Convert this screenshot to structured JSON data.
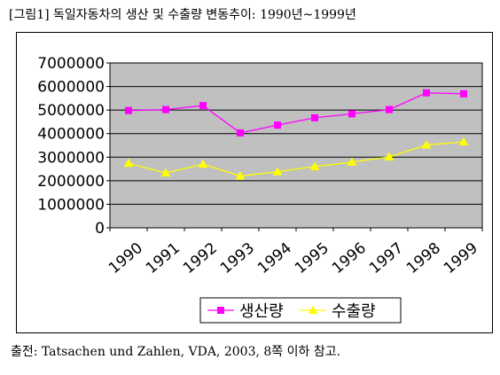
{
  "figure_title": "[그림1] 독일자동차의 생산 및 수출량 변동추이: 1990년~1999년",
  "caption": "출전: Tatsachen und Zahlen, VDA, 2003, 8쪽 이하 참고.",
  "chart_data": {
    "type": "line",
    "title": "",
    "xlabel": "",
    "ylabel": "",
    "categories": [
      "1990",
      "1991",
      "1992",
      "1993",
      "1994",
      "1995",
      "1996",
      "1997",
      "1998",
      "1999"
    ],
    "ylim": [
      0,
      7000000
    ],
    "yticks": [
      "0",
      "1000000",
      "2000000",
      "3000000",
      "4000000",
      "5000000",
      "6000000",
      "7000000"
    ],
    "grid": true,
    "plot_background": "#c0c0c0",
    "legend_position": "bottom",
    "series": [
      {
        "name": "생산량",
        "color": "#ff00ff",
        "marker": "square",
        "values": [
          4980000,
          5020000,
          5190000,
          4030000,
          4360000,
          4670000,
          4840000,
          5020000,
          5730000,
          5690000
        ]
      },
      {
        "name": "수출량",
        "color": "#ffff00",
        "marker": "triangle",
        "values": [
          2740000,
          2330000,
          2700000,
          2200000,
          2380000,
          2600000,
          2790000,
          3010000,
          3520000,
          3650000
        ]
      }
    ]
  }
}
